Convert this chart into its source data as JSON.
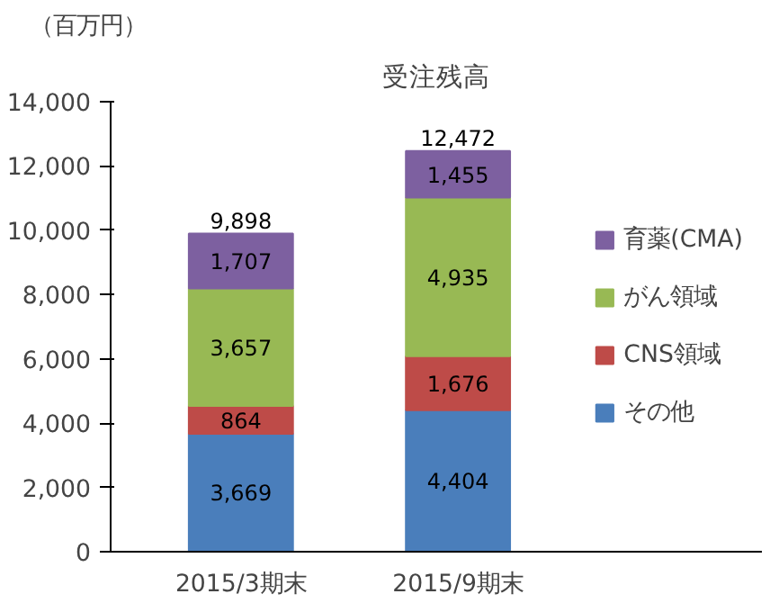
{
  "chart_data": {
    "type": "bar",
    "stacked": true,
    "title": "受注残高",
    "ylabel": "（百万円）",
    "categories": [
      "2015/3期末",
      "2015/9期末"
    ],
    "series": [
      {
        "name": "その他",
        "color": "#4a7ebb",
        "values": [
          3669,
          4404
        ],
        "value_labels": [
          "3,669",
          "4,404"
        ]
      },
      {
        "name": "CNS領域",
        "color": "#be4b48",
        "values": [
          864,
          1676
        ],
        "value_labels": [
          "864",
          "1,676"
        ]
      },
      {
        "name": "がん領域",
        "color": "#98b954",
        "values": [
          3657,
          4935
        ],
        "value_labels": [
          "3,657",
          "4,935"
        ]
      },
      {
        "name": "育薬(CMA)",
        "color": "#7d60a0",
        "values": [
          1707,
          1455
        ],
        "value_labels": [
          "1,707",
          "1,455"
        ]
      }
    ],
    "totals": [
      "9,898",
      "12,472"
    ],
    "ylim": [
      0,
      14000
    ],
    "yticks": [
      {
        "value": 0,
        "label": "0"
      },
      {
        "value": 2000,
        "label": "2,000"
      },
      {
        "value": 4000,
        "label": "4,000"
      },
      {
        "value": 6000,
        "label": "6,000"
      },
      {
        "value": 8000,
        "label": "8,000"
      },
      {
        "value": 10000,
        "label": "10,000"
      },
      {
        "value": 12000,
        "label": "12,000"
      },
      {
        "value": 14000,
        "label": "14,000"
      }
    ],
    "grid": false,
    "legend": "right"
  }
}
